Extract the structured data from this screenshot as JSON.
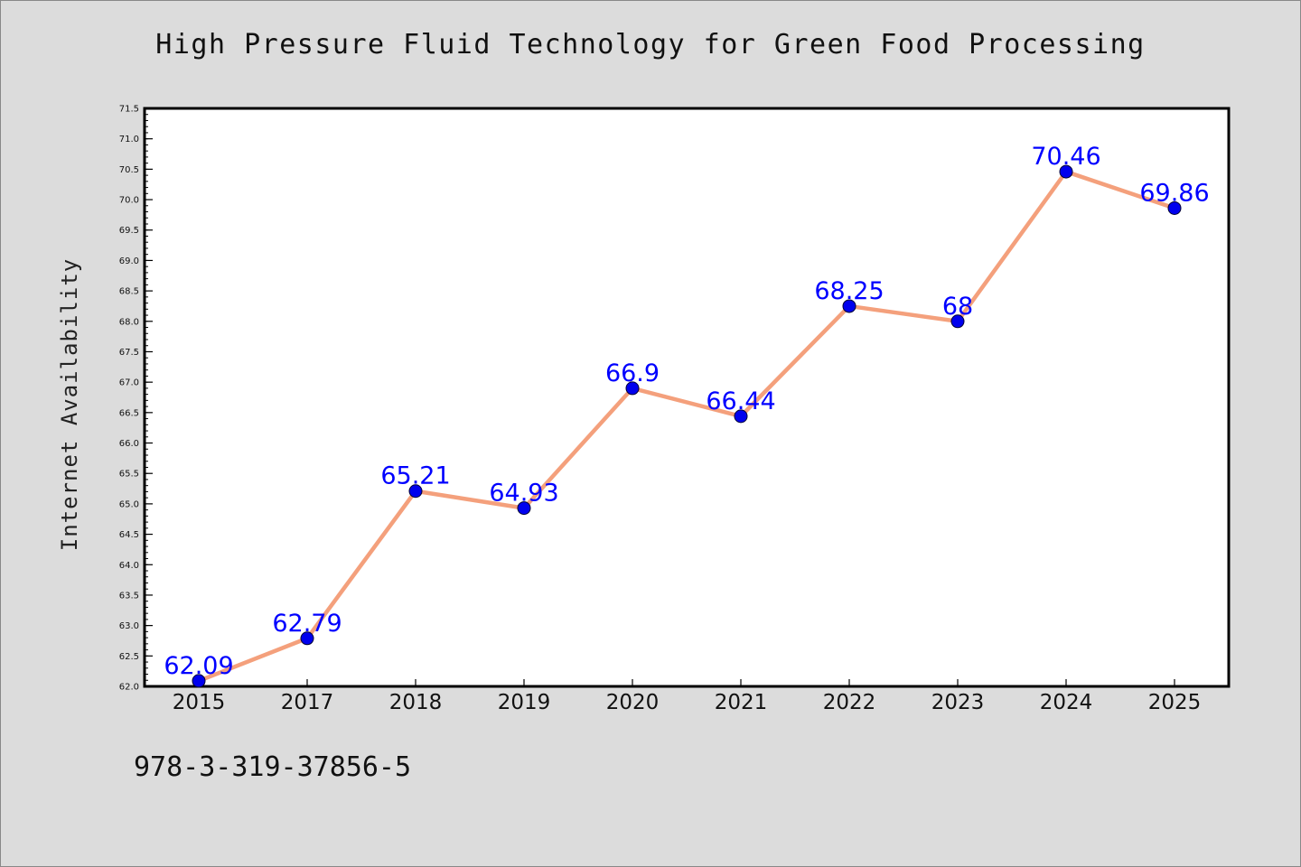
{
  "chart_data": {
    "type": "line",
    "title": "High Pressure Fluid Technology for Green Food Processing",
    "xlabel": "",
    "ylabel": "Internet Availability",
    "categories": [
      "2015",
      "2017",
      "2018",
      "2019",
      "2020",
      "2021",
      "2022",
      "2023",
      "2024",
      "2025"
    ],
    "series": [
      {
        "values": [
          62.09,
          62.79,
          65.21,
          64.93,
          66.9,
          66.44,
          68.25,
          68,
          70.46,
          69.86
        ],
        "labels": [
          "62.09",
          "62.79",
          "65.21",
          "64.93",
          "66.9",
          "66.44",
          "68.25",
          "68",
          "70.46",
          "69.86"
        ]
      }
    ],
    "ylim": [
      62.0,
      71.5
    ],
    "yticks": [
      "62.0",
      "62.5",
      "63.0",
      "63.5",
      "64.0",
      "64.5",
      "65.0",
      "65.5",
      "66.0",
      "66.5",
      "67.0",
      "67.5",
      "68.0",
      "68.5",
      "69.0",
      "69.5",
      "70.0",
      "70.5",
      "71.0",
      "71.5"
    ],
    "grid": false,
    "legend": "none",
    "colors": {
      "line": "#f4a07c",
      "marker": "#0000ee",
      "data_label": "#0000ff",
      "background": "#dcdcdc",
      "plot_background": "#ffffff"
    }
  },
  "footnote": "978-3-319-37856-5"
}
